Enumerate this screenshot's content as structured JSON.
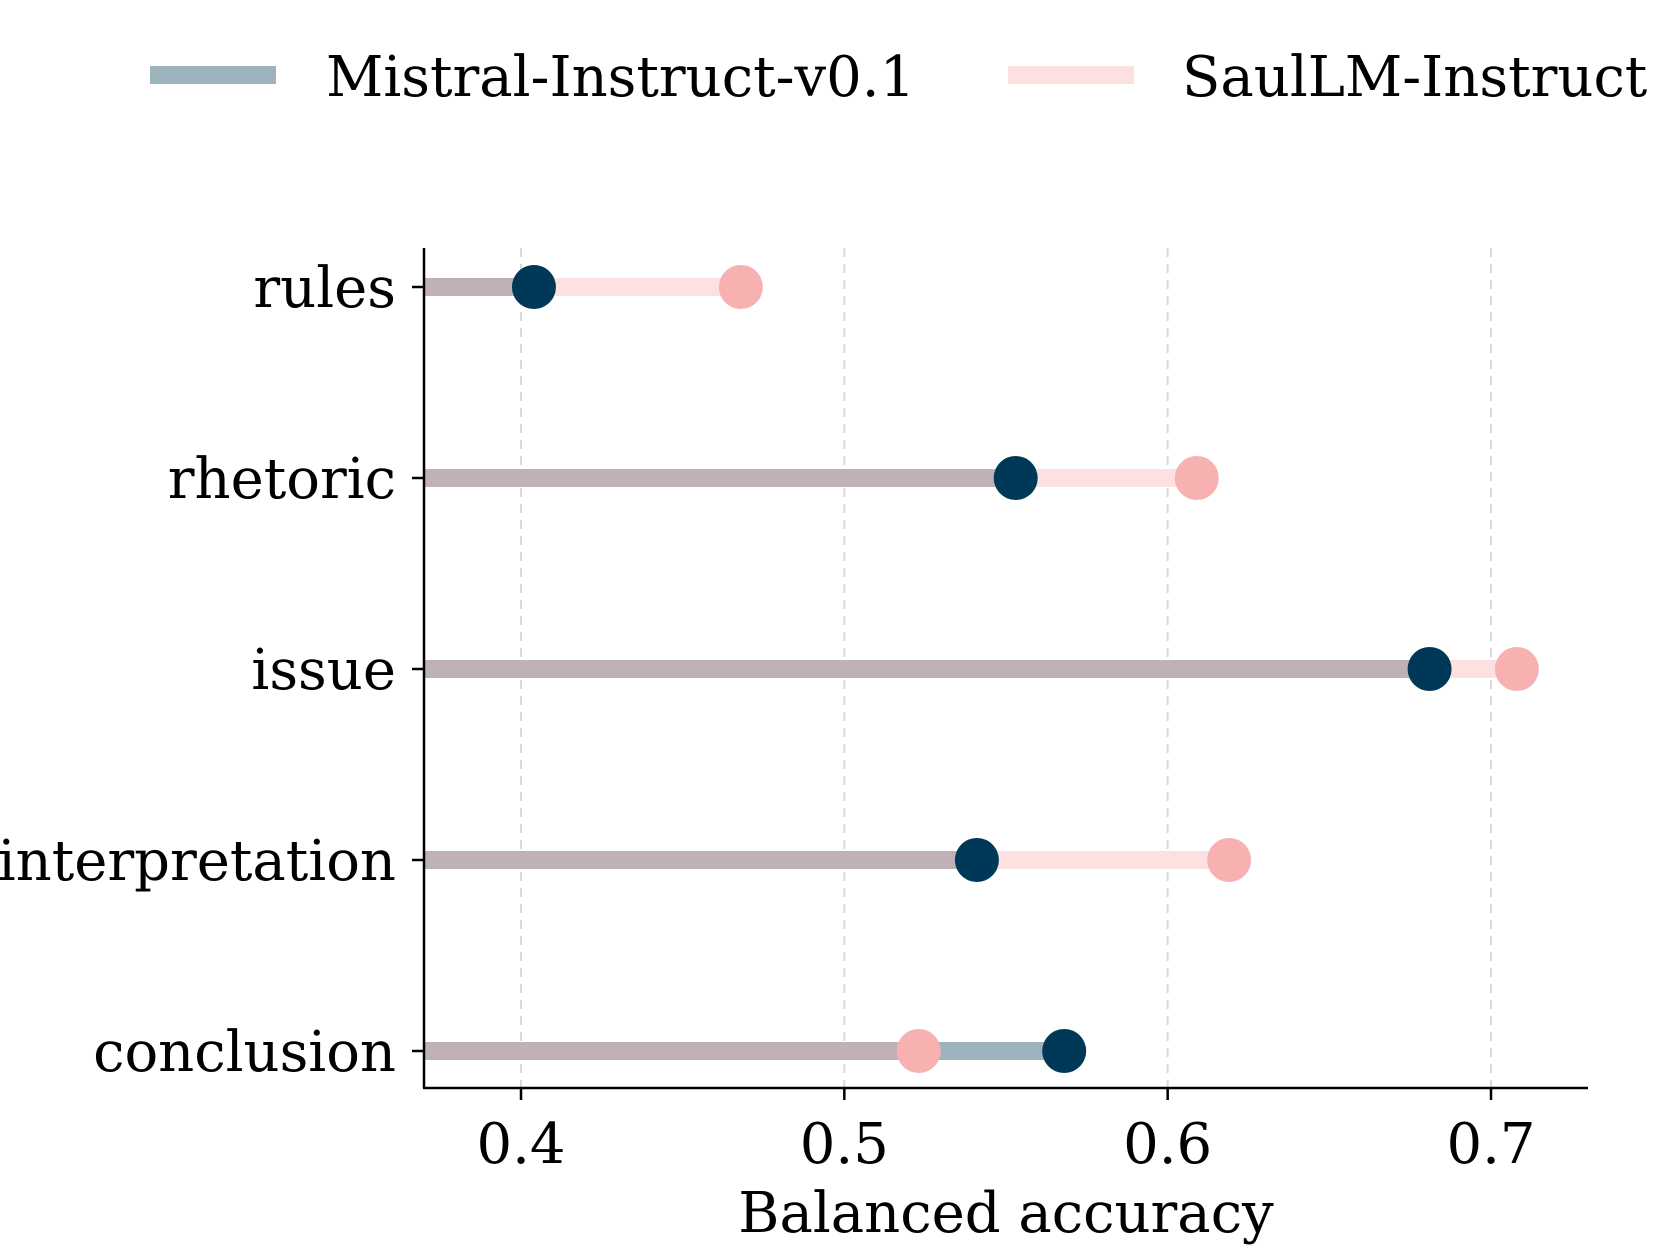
{
  "chart_data": {
    "type": "lollipop",
    "xlabel": "Balanced accuracy",
    "xlim": [
      0.37,
      0.73
    ],
    "xticks": [
      0.4,
      0.5,
      0.6,
      0.7
    ],
    "xtick_labels": [
      "0.4",
      "0.5",
      "0.6",
      "0.7"
    ],
    "grid": "vertical dashed",
    "legend_position": "top",
    "categories": [
      "rules",
      "rhetoric",
      "issue",
      "interpretation",
      "conclusion"
    ],
    "series": [
      {
        "name": "Mistral-Instruct-v0.1",
        "values": [
          0.404,
          0.553,
          0.681,
          0.541,
          0.568
        ],
        "line_color": "#9fb3bf",
        "dot_color": "#003857"
      },
      {
        "name": "SaulLM-Instruct",
        "values": [
          0.468,
          0.609,
          0.708,
          0.619,
          0.523
        ],
        "line_color": "#fde0e0",
        "dot_color": "#f8b1b1"
      }
    ],
    "overlap_color": "#c0b1b9"
  }
}
